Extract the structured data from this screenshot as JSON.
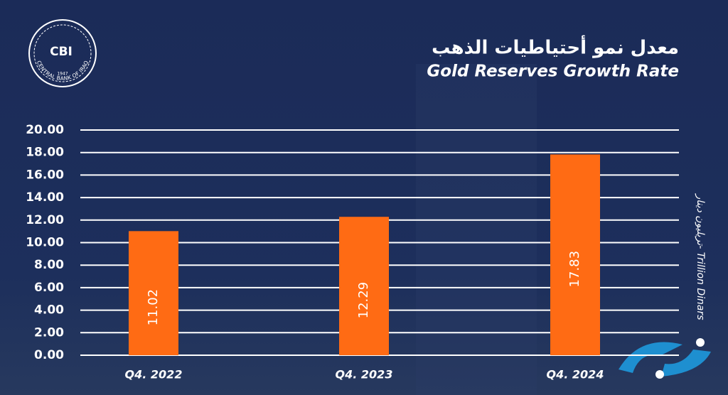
{
  "logo": {
    "abbr": "CBI",
    "name": "CENTRAL BANK OF IRAQ",
    "year": "1947"
  },
  "chart_data": {
    "type": "bar",
    "title": "معدل نمو أحتياطيات الذهب",
    "subtitle": "Gold Reserves Growth Rate",
    "y_label": "تريليون دينار- Trillion Dinars",
    "categories": [
      "Q4. 2022",
      "Q4. 2023",
      "Q4. 2024"
    ],
    "values": [
      11.02,
      12.29,
      17.83
    ],
    "color": "#ff6b14",
    "ylim": [
      0,
      20
    ],
    "yticks": [
      {
        "value": 0,
        "label": "0.00"
      },
      {
        "value": 2,
        "label": "2.00"
      },
      {
        "value": 4,
        "label": "4.00"
      },
      {
        "value": 6,
        "label": "6.00"
      },
      {
        "value": 8,
        "label": "8.00"
      },
      {
        "value": 10,
        "label": "10.00"
      },
      {
        "value": 12,
        "label": "12.00"
      },
      {
        "value": 14,
        "label": "14.00"
      },
      {
        "value": 16,
        "label": "16.00"
      },
      {
        "value": 18,
        "label": "18.00"
      },
      {
        "value": 20,
        "label": "20.00"
      }
    ],
    "grid": true
  }
}
